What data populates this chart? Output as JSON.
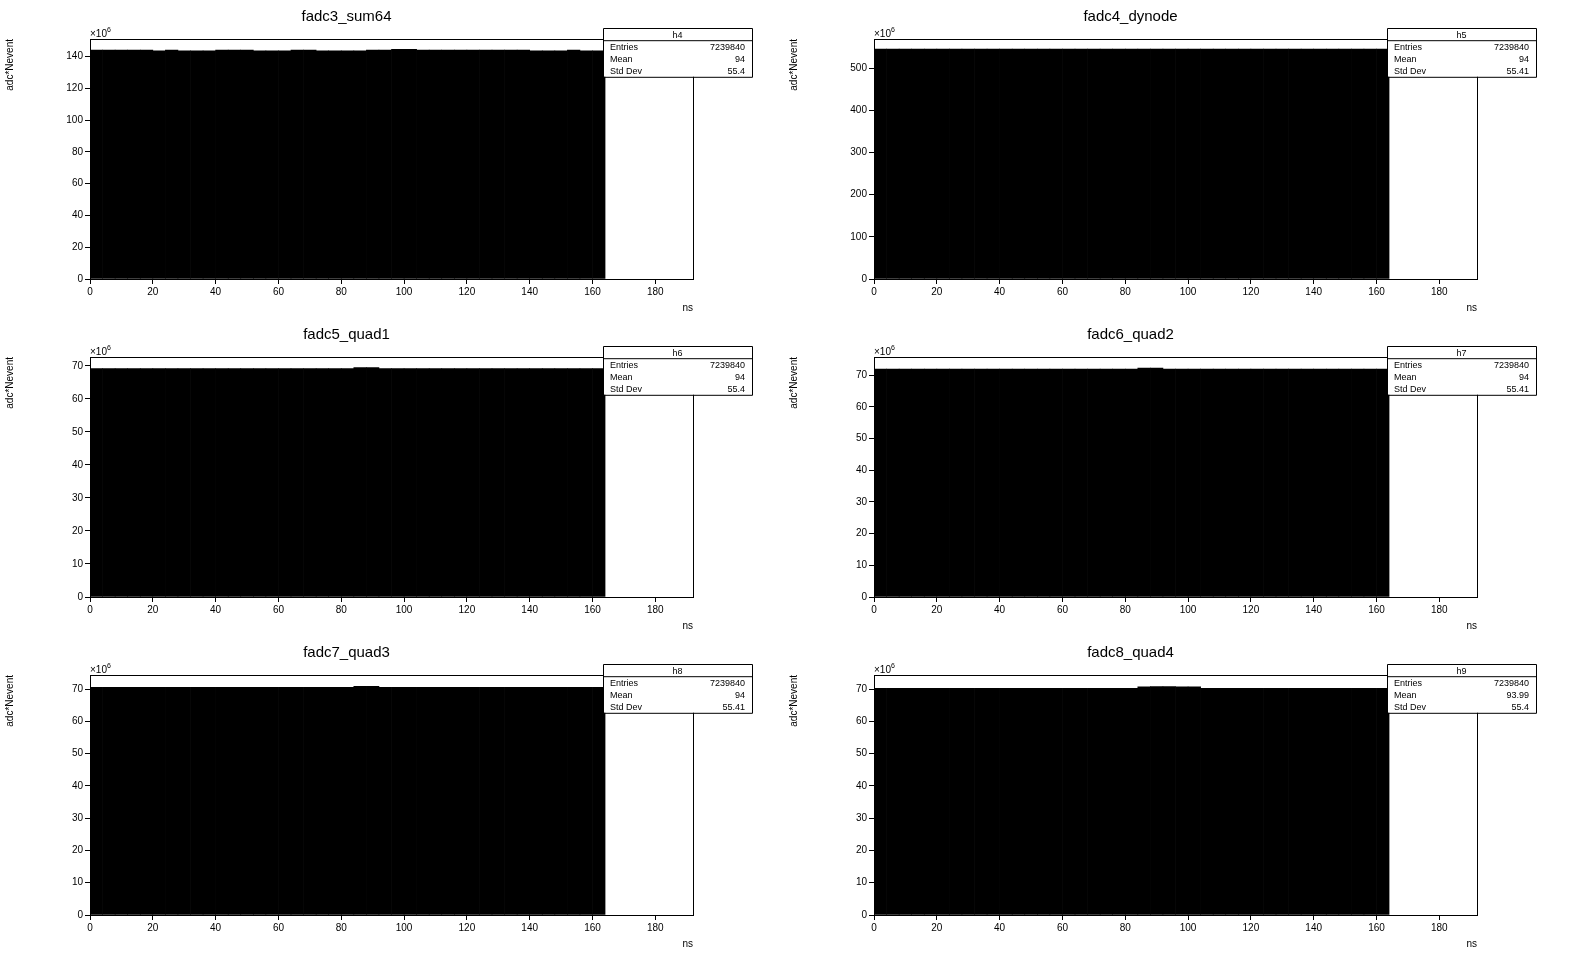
{
  "chart_data": [
    {
      "type": "histogram",
      "title": "fadc3_sum64",
      "xlabel": "ns",
      "ylabel": "adc*Nevent",
      "bins": [
        0,
        4,
        8,
        12,
        16,
        20,
        24,
        28,
        32,
        36,
        40,
        44,
        48,
        52,
        56,
        60,
        64,
        68,
        72,
        76,
        80,
        84,
        88,
        92,
        96,
        100,
        104,
        108,
        112,
        116,
        120,
        124,
        128,
        132,
        136,
        140,
        144,
        148,
        152,
        156,
        160,
        164,
        168,
        172,
        176,
        180,
        184,
        188,
        192
      ],
      "values": [
        144,
        144,
        144,
        144,
        144,
        143.5,
        144,
        143.5,
        143.5,
        143.5,
        144,
        144,
        144,
        143.5,
        143.5,
        143.5,
        144,
        144,
        143.5,
        143.5,
        143.5,
        143.5,
        144,
        144,
        144.5,
        144.5,
        144,
        144,
        144,
        144,
        144,
        144,
        144,
        144,
        144,
        143.5,
        143.5,
        143.5,
        144,
        143.5,
        143.5,
        null,
        null,
        null,
        null,
        null,
        null,
        null
      ],
      "color": "#000000",
      "xlim": [
        0,
        192
      ],
      "xticks": [
        0,
        20,
        40,
        60,
        80,
        100,
        120,
        140,
        160,
        180
      ],
      "ylim": [
        0,
        151
      ],
      "yticks": [
        0,
        20,
        40,
        60,
        80,
        100,
        120,
        140
      ],
      "annotations": [
        "h4",
        "Entries",
        "7239840",
        "Mean",
        "94",
        "Std Dev",
        "55.4",
        "×10$^{6}$"
      ]
    },
    {
      "type": "histogram",
      "title": "fadc4_dynode",
      "xlabel": "ns",
      "ylabel": "adc*Nevent",
      "bins": [
        0,
        4,
        8,
        12,
        16,
        20,
        24,
        28,
        32,
        36,
        40,
        44,
        48,
        52,
        56,
        60,
        64,
        68,
        72,
        76,
        80,
        84,
        88,
        92,
        96,
        100,
        104,
        108,
        112,
        116,
        120,
        124,
        128,
        132,
        136,
        140,
        144,
        148,
        152,
        156,
        160,
        164,
        168,
        172,
        176,
        180,
        184,
        188,
        192
      ],
      "values": [
        545,
        545,
        545,
        545,
        545,
        545,
        545,
        545,
        545,
        545,
        545,
        545,
        545,
        545,
        545,
        545,
        545,
        545,
        545,
        545,
        545,
        545,
        545,
        545,
        545,
        545,
        545,
        545,
        545,
        545,
        545,
        545,
        545,
        545,
        545,
        545,
        545,
        545,
        545,
        545,
        545,
        null,
        null,
        null,
        null,
        null,
        null,
        null
      ],
      "color": "#000000",
      "xlim": [
        0,
        192
      ],
      "xticks": [
        0,
        20,
        40,
        60,
        80,
        100,
        120,
        140,
        160,
        180
      ],
      "ylim": [
        0,
        569
      ],
      "yticks": [
        0,
        100,
        200,
        300,
        400,
        500
      ],
      "annotations": [
        "h5",
        "Entries",
        "7239840",
        "Mean",
        "94",
        "Std Dev",
        "55.41",
        "×10$^{6}$"
      ]
    },
    {
      "type": "histogram",
      "title": "fadc5_quad1",
      "xlabel": "ns",
      "ylabel": "adc*Nevent",
      "bins": [
        0,
        4,
        8,
        12,
        16,
        20,
        24,
        28,
        32,
        36,
        40,
        44,
        48,
        52,
        56,
        60,
        64,
        68,
        72,
        76,
        80,
        84,
        88,
        92,
        96,
        100,
        104,
        108,
        112,
        116,
        120,
        124,
        128,
        132,
        136,
        140,
        144,
        148,
        152,
        156,
        160,
        164,
        168,
        172,
        176,
        180,
        184,
        188,
        192
      ],
      "values": [
        69.2,
        69.2,
        69.2,
        69.2,
        69.2,
        69.2,
        69.2,
        69.2,
        69.2,
        69.2,
        69.2,
        69.2,
        69.2,
        69.2,
        69.2,
        69.2,
        69.2,
        69.2,
        69.2,
        69.2,
        69.2,
        69.5,
        69.5,
        69.2,
        69.2,
        69.2,
        69.2,
        69.2,
        69.2,
        69.2,
        69.2,
        69.2,
        69.2,
        69.2,
        69.2,
        69.2,
        69.2,
        69.2,
        69.2,
        69.2,
        69.2,
        null,
        null,
        null,
        null,
        null,
        null,
        null
      ],
      "color": "#000000",
      "xlim": [
        0,
        192
      ],
      "xticks": [
        0,
        20,
        40,
        60,
        80,
        100,
        120,
        140,
        160,
        180
      ],
      "ylim": [
        0,
        72.7
      ],
      "yticks": [
        0,
        10,
        20,
        30,
        40,
        50,
        60,
        70
      ],
      "annotations": [
        "h6",
        "Entries",
        "7239840",
        "Mean",
        "94",
        "Std Dev",
        "55.4",
        "×10$^{6}$"
      ]
    },
    {
      "type": "histogram",
      "title": "fadc6_quad2",
      "xlabel": "ns",
      "ylabel": "adc*Nevent",
      "bins": [
        0,
        4,
        8,
        12,
        16,
        20,
        24,
        28,
        32,
        36,
        40,
        44,
        48,
        52,
        56,
        60,
        64,
        68,
        72,
        76,
        80,
        84,
        88,
        92,
        96,
        100,
        104,
        108,
        112,
        116,
        120,
        124,
        128,
        132,
        136,
        140,
        144,
        148,
        152,
        156,
        160,
        164,
        168,
        172,
        176,
        180,
        184,
        188,
        192
      ],
      "values": [
        71.9,
        71.9,
        71.9,
        71.9,
        71.9,
        71.9,
        71.9,
        71.9,
        71.9,
        71.9,
        71.9,
        71.9,
        71.9,
        71.9,
        71.9,
        71.9,
        71.9,
        71.9,
        71.9,
        71.9,
        71.9,
        72.2,
        72.2,
        71.9,
        71.9,
        71.9,
        71.9,
        71.9,
        71.9,
        71.9,
        71.9,
        71.9,
        71.9,
        71.9,
        71.9,
        71.9,
        71.9,
        71.9,
        71.9,
        71.9,
        71.9,
        null,
        null,
        null,
        null,
        null,
        null,
        null
      ],
      "color": "#000000",
      "xlim": [
        0,
        192
      ],
      "xticks": [
        0,
        20,
        40,
        60,
        80,
        100,
        120,
        140,
        160,
        180
      ],
      "ylim": [
        0,
        75.7
      ],
      "yticks": [
        0,
        10,
        20,
        30,
        40,
        50,
        60,
        70
      ],
      "annotations": [
        "h7",
        "Entries",
        "7239840",
        "Mean",
        "94",
        "Std Dev",
        "55.41",
        "×10$^{6}$"
      ]
    },
    {
      "type": "histogram",
      "title": "fadc7_quad3",
      "xlabel": "ns",
      "ylabel": "adc*Nevent",
      "bins": [
        0,
        4,
        8,
        12,
        16,
        20,
        24,
        28,
        32,
        36,
        40,
        44,
        48,
        52,
        56,
        60,
        64,
        68,
        72,
        76,
        80,
        84,
        88,
        92,
        96,
        100,
        104,
        108,
        112,
        116,
        120,
        124,
        128,
        132,
        136,
        140,
        144,
        148,
        152,
        156,
        160,
        164,
        168,
        172,
        176,
        180,
        184,
        188,
        192
      ],
      "values": [
        70.6,
        70.6,
        70.6,
        70.6,
        70.6,
        70.6,
        70.6,
        70.6,
        70.6,
        70.6,
        70.6,
        70.6,
        70.6,
        70.6,
        70.6,
        70.6,
        70.6,
        70.6,
        70.6,
        70.6,
        70.6,
        70.9,
        70.9,
        70.6,
        70.6,
        70.6,
        70.6,
        70.6,
        70.6,
        70.6,
        70.6,
        70.6,
        70.6,
        70.6,
        70.6,
        70.6,
        70.6,
        70.6,
        70.6,
        70.6,
        70.6,
        null,
        null,
        null,
        null,
        null,
        null,
        null
      ],
      "color": "#000000",
      "xlim": [
        0,
        192
      ],
      "xticks": [
        0,
        20,
        40,
        60,
        80,
        100,
        120,
        140,
        160,
        180
      ],
      "ylim": [
        0,
        74.4
      ],
      "yticks": [
        0,
        10,
        20,
        30,
        40,
        50,
        60,
        70
      ],
      "annotations": [
        "h8",
        "Entries",
        "7239840",
        "Mean",
        "94",
        "Std Dev",
        "55.41",
        "×10$^{6}$"
      ]
    },
    {
      "type": "histogram",
      "title": "fadc8_quad4",
      "xlabel": "ns",
      "ylabel": "adc*Nevent",
      "bins": [
        0,
        4,
        8,
        12,
        16,
        20,
        24,
        28,
        32,
        36,
        40,
        44,
        48,
        52,
        56,
        60,
        64,
        68,
        72,
        76,
        80,
        84,
        88,
        92,
        96,
        100,
        104,
        108,
        112,
        116,
        120,
        124,
        128,
        132,
        136,
        140,
        144,
        148,
        152,
        156,
        160,
        164,
        168,
        172,
        176,
        180,
        184,
        188,
        192
      ],
      "values": [
        70.3,
        70.3,
        70.3,
        70.3,
        70.3,
        70.3,
        70.3,
        70.3,
        70.3,
        70.3,
        70.3,
        70.3,
        70.3,
        70.3,
        70.3,
        70.3,
        70.3,
        70.3,
        70.3,
        70.3,
        70.3,
        70.7,
        70.8,
        70.8,
        70.7,
        70.7,
        70.3,
        70.3,
        70.3,
        70.3,
        70.3,
        70.3,
        70.3,
        70.3,
        70.3,
        70.3,
        70.3,
        70.3,
        70.3,
        70.3,
        70.3,
        null,
        null,
        null,
        null,
        null,
        null,
        null
      ],
      "color": "#000000",
      "xlim": [
        0,
        192
      ],
      "xticks": [
        0,
        20,
        40,
        60,
        80,
        100,
        120,
        140,
        160,
        180
      ],
      "ylim": [
        0,
        74.4
      ],
      "yticks": [
        0,
        10,
        20,
        30,
        40,
        50,
        60,
        70
      ],
      "annotations": [
        "h9",
        "Entries",
        "7239840",
        "Mean",
        "93.99",
        "Std Dev",
        "55.4",
        "×10$^{6}$"
      ]
    }
  ]
}
